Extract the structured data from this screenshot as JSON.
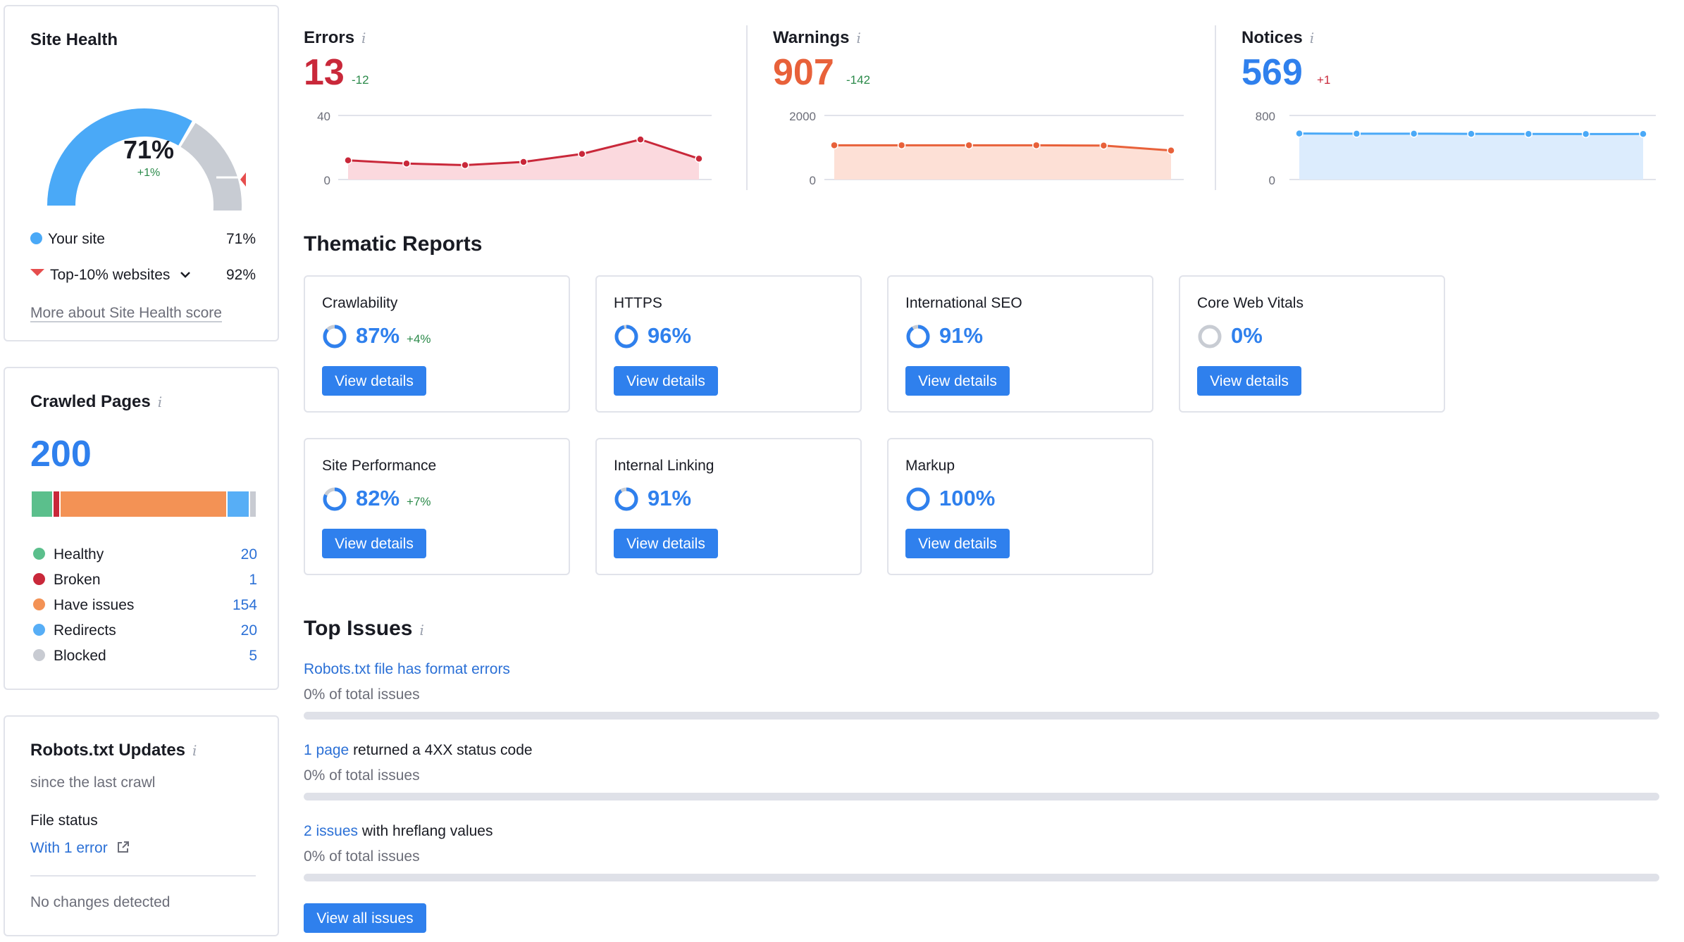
{
  "site_health": {
    "title": "Site Health",
    "percent": "71%",
    "delta": "+1%",
    "legend": [
      {
        "label": "Your site",
        "value": "71%"
      },
      {
        "label": "Top-10% websites",
        "value": "92%"
      }
    ],
    "more_link": "More about Site Health score",
    "colors": {
      "site": "#4aa9f7",
      "rest": "#c8ccd3",
      "top": "#e64d4d"
    }
  },
  "crawled_pages": {
    "title": "Crawled Pages",
    "total": "200",
    "items": [
      {
        "label": "Healthy",
        "value": "20",
        "color": "#5bbf8c"
      },
      {
        "label": "Broken",
        "value": "1",
        "color": "#c9283a"
      },
      {
        "label": "Have issues",
        "value": "154",
        "color": "#f39255"
      },
      {
        "label": "Redirects",
        "value": "20",
        "color": "#57aef6"
      },
      {
        "label": "Blocked",
        "value": "5",
        "color": "#c8cbd2"
      }
    ]
  },
  "robots": {
    "title": "Robots.txt Updates",
    "subtitle": "since the last crawl",
    "file_status_label": "File status",
    "file_status_link": "With 1 error",
    "no_changes": "No changes detected"
  },
  "metrics": [
    {
      "title": "Errors",
      "value": "13",
      "delta": "-12",
      "ymax": "40",
      "ymin": "0",
      "color": "#c9283a",
      "fill": "#fbd9de",
      "delta_color": "#2b8a4a",
      "points": [
        12,
        10,
        9,
        11,
        16,
        25,
        13
      ]
    },
    {
      "title": "Warnings",
      "value": "907",
      "delta": "-142",
      "ymax": "2000",
      "ymin": "0",
      "color": "#e8613a",
      "fill": "#fde0d6",
      "delta_color": "#2b8a4a",
      "points": [
        1070,
        1070,
        1070,
        1070,
        1060,
        907
      ]
    },
    {
      "title": "Notices",
      "value": "569",
      "delta": "+1",
      "ymax": "800",
      "ymin": "0",
      "color": "#4aa9f7",
      "fill": "#dcecfd",
      "delta_color": "#c9283a",
      "points": [
        575,
        572,
        573,
        570,
        569,
        568,
        569
      ]
    }
  ],
  "thematic": {
    "title": "Thematic Reports",
    "button_label": "View details",
    "reports": [
      {
        "name": "Crawlability",
        "pct": "87%",
        "delta": "+4%",
        "fraction": 0.87,
        "ring": "#2f80ed"
      },
      {
        "name": "HTTPS",
        "pct": "96%",
        "delta": "",
        "fraction": 0.96,
        "ring": "#2f80ed"
      },
      {
        "name": "International SEO",
        "pct": "91%",
        "delta": "",
        "fraction": 0.91,
        "ring": "#2f80ed"
      },
      {
        "name": "Core Web Vitals",
        "pct": "0%",
        "delta": "",
        "fraction": 0.0,
        "ring": "#c8ccd3"
      },
      {
        "name": "Site Performance",
        "pct": "82%",
        "delta": "+7%",
        "fraction": 0.82,
        "ring": "#2f80ed"
      },
      {
        "name": "Internal Linking",
        "pct": "91%",
        "delta": "",
        "fraction": 0.91,
        "ring": "#2f80ed"
      },
      {
        "name": "Markup",
        "pct": "100%",
        "delta": "",
        "fraction": 1.0,
        "ring": "#2f80ed"
      }
    ]
  },
  "top_issues": {
    "title": "Top Issues",
    "issues": [
      {
        "link": "Robots.txt file has format errors",
        "text": "",
        "share": "0% of total issues"
      },
      {
        "link": "1 page",
        "text": " returned a 4XX status code",
        "share": "0% of total issues"
      },
      {
        "link": "2 issues",
        "text": " with hreflang values",
        "share": "0% of total issues"
      }
    ],
    "view_all": "View all issues"
  }
}
